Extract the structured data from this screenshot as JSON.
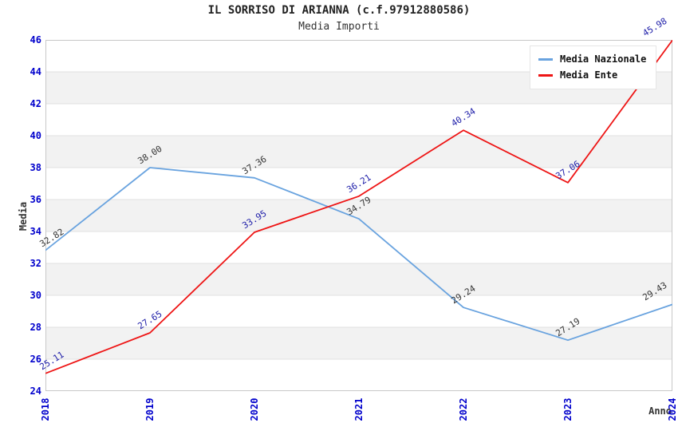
{
  "chart_data": {
    "type": "line",
    "title": "IL SORRISO DI ARIANNA (c.f.97912880586)",
    "subtitle": "Media Importi",
    "xlabel": "Anno",
    "ylabel": "Media",
    "categories": [
      "2018",
      "2019",
      "2020",
      "2021",
      "2022",
      "2023",
      "2024"
    ],
    "series": [
      {
        "name": "Media Nazionale",
        "color": "#69A3DF",
        "label_color": "#333333",
        "values": [
          32.82,
          38.0,
          37.36,
          34.79,
          29.24,
          27.19,
          29.43
        ]
      },
      {
        "name": "Media Ente",
        "color": "#EE1515",
        "label_color": "#1C1CA8",
        "values": [
          25.11,
          27.65,
          33.95,
          36.21,
          40.34,
          37.06,
          45.98
        ]
      }
    ],
    "ylim": [
      24,
      46
    ],
    "ytick_step": 2,
    "grid": "horizontal-bands",
    "legend_position": "top-right",
    "tick_color": "#0000CC",
    "band_color": "#F2F2F2",
    "gridline_color": "#E0E0E0",
    "border_color": "#C8C8C8"
  }
}
